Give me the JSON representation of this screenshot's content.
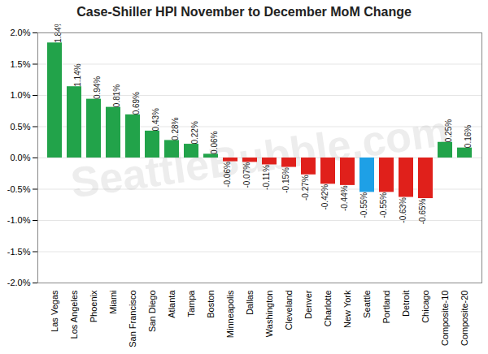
{
  "chart_data": {
    "type": "bar",
    "title": "Case-Shiller HPI November to December MoM Change",
    "categories": [
      "Las Vegas",
      "Los Angeles",
      "Phoenix",
      "Miami",
      "San Francisco",
      "San Diego",
      "Atlanta",
      "Tampa",
      "Boston",
      "Minneapolis",
      "Dallas",
      "Washington",
      "Cleveland",
      "Denver",
      "Charlotte",
      "New York",
      "Seattle",
      "Portland",
      "Detroit",
      "Chicago",
      "Composite-10",
      "Composite-20"
    ],
    "values": [
      1.84,
      1.14,
      0.94,
      0.81,
      0.69,
      0.43,
      0.28,
      0.22,
      0.06,
      -0.06,
      -0.07,
      -0.11,
      -0.15,
      -0.27,
      -0.42,
      -0.44,
      -0.55,
      -0.55,
      -0.63,
      -0.65,
      0.25,
      0.16
    ],
    "value_labels": [
      "1.84%",
      "1.14%",
      "0.94%",
      "0.81%",
      "0.69%",
      "0.43%",
      "0.28%",
      "0.22%",
      "0.06%",
      "-0.06%",
      "-0.07%",
      "-0.11%",
      "-0.15%",
      "-0.27%",
      "-0.42%",
      "-0.44%",
      "-0.55%",
      "-0.55%",
      "-0.63%",
      "-0.65%",
      "0.25%",
      "0.16%"
    ],
    "colors": [
      "#22a34a",
      "#22a34a",
      "#22a34a",
      "#22a34a",
      "#22a34a",
      "#22a34a",
      "#22a34a",
      "#22a34a",
      "#22a34a",
      "#e0201b",
      "#e0201b",
      "#e0201b",
      "#e0201b",
      "#e0201b",
      "#e0201b",
      "#e0201b",
      "#1ea0e6",
      "#e0201b",
      "#e0201b",
      "#e0201b",
      "#22a34a",
      "#22a34a"
    ],
    "ylim": [
      -2,
      2
    ],
    "yticks": [
      {
        "value": -2,
        "label": "-2.0%"
      },
      {
        "value": -1.5,
        "label": "-1.5%"
      },
      {
        "value": -1,
        "label": "-1.0%"
      },
      {
        "value": -0.5,
        "label": "-0.5%"
      },
      {
        "value": 0,
        "label": "0.0%"
      },
      {
        "value": 0.5,
        "label": "0.5%"
      },
      {
        "value": 1,
        "label": "1.0%"
      },
      {
        "value": 1.5,
        "label": "1.5%"
      },
      {
        "value": 2,
        "label": "2.0%"
      }
    ],
    "grid": true,
    "data_labels": true,
    "annotations": [
      "SeattleBubble.com"
    ]
  }
}
